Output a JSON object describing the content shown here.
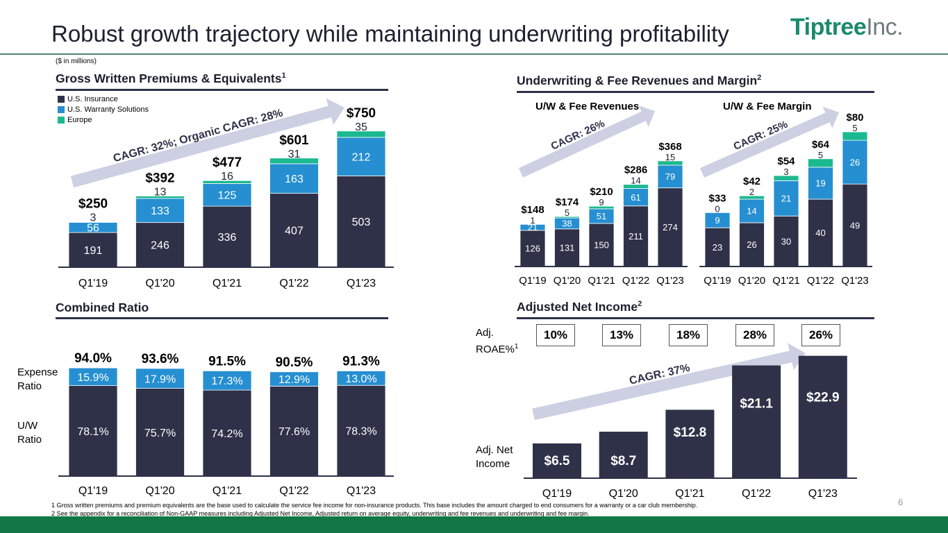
{
  "header": {
    "title": "Robust growth trajectory while maintaining underwriting profitability",
    "logo_main": "Tiptree",
    "logo_suffix": "Inc.",
    "units_note": "($ in millions)"
  },
  "colors": {
    "navy": "#2e3148",
    "blue": "#268fd1",
    "green": "#1bb98f",
    "arrow": "#cdd0e2",
    "brand_green": "#117744"
  },
  "gwp": {
    "title": "Gross Written Premiums & Equivalents",
    "title_sup": "1",
    "legend": [
      "U.S. Insurance",
      "U.S. Warranty Solutions",
      "Europe"
    ],
    "cagr": "CAGR: 32%; Organic CAGR: 28%"
  },
  "uw": {
    "title": "Underwriting & Fee Revenues and Margin",
    "title_sup": "2",
    "rev_subtitle": "U/W & Fee Revenues",
    "margin_subtitle": "U/W & Fee Margin",
    "rev_cagr": "CAGR: 26%",
    "margin_cagr": "CAGR: 25%"
  },
  "cr": {
    "title": "Combined Ratio",
    "expense_label_1": "Expense",
    "expense_label_2": "Ratio",
    "uw_label_1": "U/W",
    "uw_label_2": "Ratio"
  },
  "ani": {
    "title": "Adjusted Net Income",
    "title_sup": "2",
    "roae_label_1": "Adj.",
    "roae_label_2": "ROAE%",
    "roae_sup": "1",
    "roae": [
      "10%",
      "13%",
      "18%",
      "28%",
      "26%"
    ],
    "income_label_1": "Adj. Net",
    "income_label_2": "Income",
    "cagr": "CAGR: 37%"
  },
  "chart_data": [
    {
      "id": "gross_written_premiums",
      "type": "bar",
      "stacked": true,
      "title": "Gross Written Premiums & Equivalents",
      "categories": [
        "Q1'19",
        "Q1'20",
        "Q1'21",
        "Q1'22",
        "Q1'23"
      ],
      "series": [
        {
          "name": "U.S. Insurance",
          "values": [
            191,
            246,
            336,
            407,
            503
          ],
          "labels": [
            "191",
            "246",
            "336",
            "407",
            "503"
          ]
        },
        {
          "name": "U.S. Warranty Solutions",
          "values": [
            56,
            133,
            125,
            163,
            212
          ],
          "labels": [
            "56",
            "133",
            "125",
            "163",
            "212"
          ]
        },
        {
          "name": "Europe",
          "values": [
            3,
            13,
            16,
            31,
            35
          ],
          "labels": [
            "3",
            "13",
            "16",
            "31",
            "35"
          ]
        }
      ],
      "totals": [
        "$250",
        "$392",
        "$477",
        "$601",
        "$750"
      ],
      "ylim": [
        0,
        800
      ]
    },
    {
      "id": "uw_fee_revenues",
      "type": "bar",
      "stacked": true,
      "title": "U/W & Fee Revenues",
      "categories": [
        "Q1'19",
        "Q1'20",
        "Q1'21",
        "Q1'22",
        "Q1'23"
      ],
      "series": [
        {
          "name": "U.S. Insurance",
          "values": [
            126,
            131,
            150,
            211,
            274
          ],
          "labels": [
            "126",
            "131",
            "150",
            "211",
            "274"
          ]
        },
        {
          "name": "U.S. Warranty Solutions",
          "values": [
            21,
            38,
            51,
            61,
            79
          ],
          "labels": [
            "21",
            "38",
            "51",
            "61",
            "79"
          ]
        },
        {
          "name": "Europe",
          "values": [
            1,
            5,
            9,
            14,
            15
          ],
          "labels": [
            "1",
            "5",
            "9",
            "14",
            "15"
          ]
        }
      ],
      "totals": [
        "$148",
        "$174",
        "$210",
        "$286",
        "$368"
      ],
      "ylim": [
        0,
        380
      ]
    },
    {
      "id": "uw_fee_margin",
      "type": "bar",
      "stacked": true,
      "title": "U/W & Fee Margin",
      "categories": [
        "Q1'19",
        "Q1'20",
        "Q1'21",
        "Q1'22",
        "Q1'23"
      ],
      "series": [
        {
          "name": "U.S. Insurance",
          "values": [
            23,
            26,
            30,
            40,
            49
          ],
          "labels": [
            "23",
            "26",
            "30",
            "40",
            "49"
          ]
        },
        {
          "name": "U.S. Warranty Solutions",
          "values": [
            9,
            14,
            21,
            19,
            26
          ],
          "labels": [
            "9",
            "14",
            "21",
            "19",
            "26"
          ]
        },
        {
          "name": "Europe",
          "values": [
            0,
            2,
            3,
            5,
            5
          ],
          "labels": [
            "0",
            "2",
            "3",
            "5",
            "5"
          ]
        }
      ],
      "totals": [
        "$33",
        "$42",
        "$54",
        "$64",
        "$80"
      ],
      "ylim": [
        0,
        85
      ]
    },
    {
      "id": "combined_ratio",
      "type": "bar",
      "stacked": true,
      "title": "Combined Ratio",
      "categories": [
        "Q1'19",
        "Q1'20",
        "Q1'21",
        "Q1'22",
        "Q1'23"
      ],
      "series": [
        {
          "name": "U/W Ratio",
          "values": [
            78.1,
            75.7,
            74.2,
            77.6,
            78.3
          ],
          "labels": [
            "78.1%",
            "75.7%",
            "74.2%",
            "77.6%",
            "78.3%"
          ]
        },
        {
          "name": "Expense Ratio",
          "values": [
            15.9,
            17.9,
            17.3,
            12.9,
            13.0
          ],
          "labels": [
            "15.9%",
            "17.9%",
            "17.3%",
            "12.9%",
            "13.0%"
          ]
        }
      ],
      "totals": [
        "94.0%",
        "93.6%",
        "91.5%",
        "90.5%",
        "91.3%"
      ],
      "ylim": [
        0,
        100
      ]
    },
    {
      "id": "adjusted_net_income",
      "type": "bar",
      "stacked": false,
      "title": "Adjusted Net Income",
      "categories": [
        "Q1'19",
        "Q1'20",
        "Q1'21",
        "Q1'22",
        "Q1'23"
      ],
      "series": [
        {
          "name": "Adj. Net Income",
          "values": [
            6.5,
            8.7,
            12.8,
            21.1,
            22.9
          ],
          "labels": [
            "$6.5",
            "$8.7",
            "$12.8",
            "$21.1",
            "$22.9"
          ]
        }
      ],
      "ylim": [
        0,
        23
      ]
    }
  ],
  "footnotes": [
    "1 Gross written premiums and premium equivalents are the base used to calculate the service fee income for non-insurance products. This base includes the amount charged to end consumers for a warranty or a car club membership.",
    "2 See the appendix for a reconciliation of Non-GAAP measures including Adjusted Net Income, Adjusted return on average equity, underwriting and fee revenues and underwriting and fee margin."
  ],
  "page_number": "6"
}
